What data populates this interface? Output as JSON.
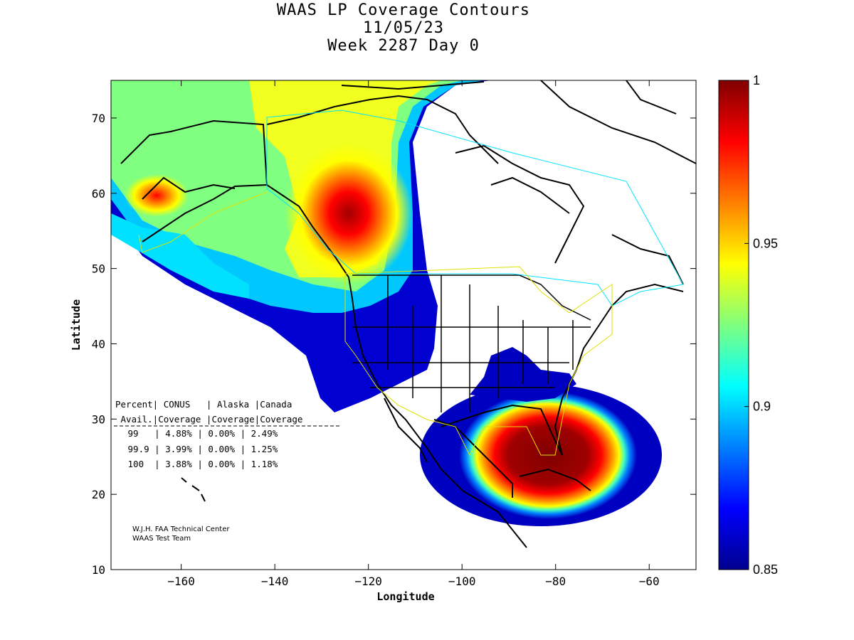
{
  "title": {
    "line1": "WAAS LP Coverage Contours",
    "line2": "11/05/23",
    "line3": "Week 2287 Day 0"
  },
  "map": {
    "xlabel": "Longitude",
    "ylabel": "Latitude",
    "xlim": [
      -175,
      -50
    ],
    "ylim": [
      10,
      75
    ],
    "xticks": [
      -160,
      -140,
      -120,
      -100,
      -80,
      -60
    ],
    "yticks": [
      10,
      20,
      30,
      40,
      50,
      60,
      70
    ],
    "colors": {
      "dark_red": "#800000",
      "red": "#ff0000",
      "orange": "#ff8c00",
      "yellow": "#ffff00",
      "green": "#7fff7f",
      "cyan": "#00ffff",
      "blue": "#0040ff",
      "dark_blue": "#00008f",
      "boundary_cyan": "#00e5ff",
      "boundary_yellow": "#ffff00"
    }
  },
  "stats_table": {
    "header1": "Percent| CONUS   | Alaska |Canada",
    "header2": " Avail.|Coverage |Coverage|Coverage",
    "rows": [
      " 99   | 4.88% | 0.00% | 2.49%",
      " 99.9 | 3.99% | 0.00% | 1.25%",
      " 100  | 3.88% | 0.00% | 1.18%"
    ]
  },
  "credit": {
    "line1": "W.J.H. FAA Technical Center",
    "line2": "WAAS Test Team"
  },
  "colorbar": {
    "ticks": [
      "1",
      "0.95",
      "0.9",
      "0.85"
    ],
    "min": 0.85,
    "max": 1
  }
}
